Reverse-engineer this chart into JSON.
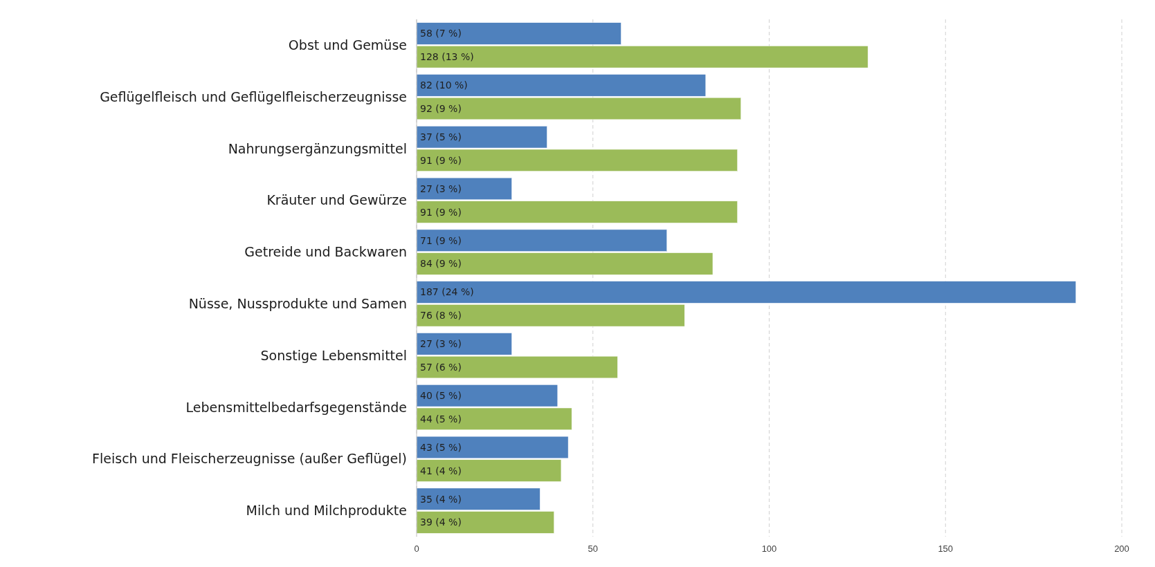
{
  "chart_data": {
    "type": "bar",
    "orientation": "horizontal",
    "categories": [
      "Obst und Gemüse",
      "Geflügelfleisch und Geflügelfleischerzeugnisse",
      "Nahrungsergänzungsmittel",
      "Kräuter und Gewürze",
      "Getreide und Backwaren",
      "Nüsse, Nussprodukte und Samen",
      "Sonstige Lebensmittel",
      "Lebensmittelbedarfsgegenstände",
      "Fleisch und Fleischerzeugnisse (außer Geflügel)",
      "Milch und Milchprodukte"
    ],
    "series": [
      {
        "color": "#4f81bd",
        "values": [
          58,
          82,
          37,
          27,
          71,
          187,
          27,
          40,
          43,
          35
        ],
        "value_labels": [
          "58 (7 %)",
          "82 (10 %)",
          "37 (5 %)",
          "27 (3 %)",
          "71 (9 %)",
          "187 (24 %)",
          "27 (3 %)",
          "40 (5 %)",
          "43 (5 %)",
          "35 (4 %)"
        ]
      },
      {
        "color": "#9bbb59",
        "values": [
          128,
          92,
          91,
          91,
          84,
          76,
          57,
          44,
          41,
          39
        ],
        "value_labels": [
          "128 (13 %)",
          "92 (9 %)",
          "91 (9 %)",
          "91 (9 %)",
          "84 (9 %)",
          "76 (8 %)",
          "57 (6 %)",
          "44 (5 %)",
          "41 (4 %)",
          "39 (4 %)"
        ]
      }
    ],
    "xlim": [
      0,
      200
    ],
    "xticks": [
      0,
      50,
      100,
      150,
      200
    ],
    "grid": "x"
  }
}
